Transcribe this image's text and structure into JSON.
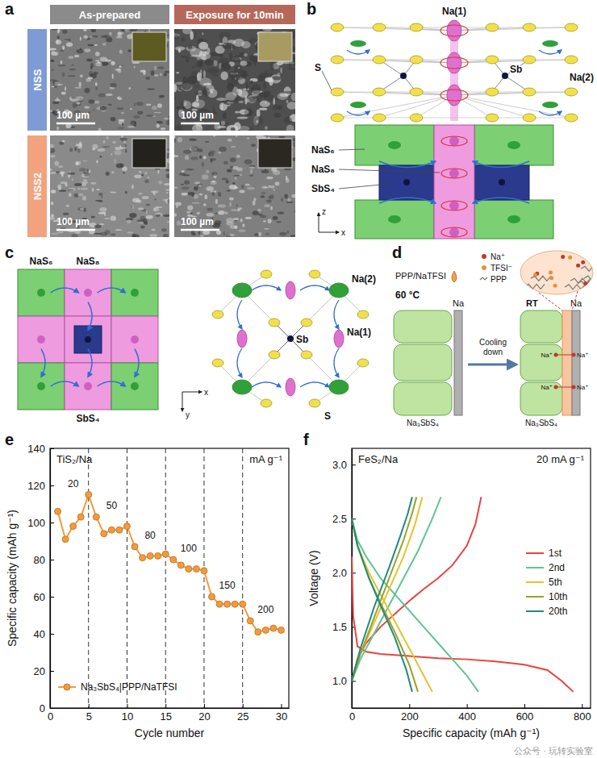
{
  "panel_labels": [
    "a",
    "b",
    "c",
    "d",
    "e",
    "f"
  ],
  "panel_a": {
    "columns": [
      "As-prepared",
      "Exposure for 10min"
    ],
    "rows": [
      "NSS",
      "NSS2"
    ],
    "scale_bars": [
      "100 µm",
      "100 µm",
      "100 µm",
      "100 µm"
    ]
  },
  "panel_b": {
    "atom_labels": [
      "Na(1)",
      "S",
      "Sb",
      "Na(2)"
    ],
    "polyhedra": [
      "NaS₆",
      "NaS₈",
      "SbS₄"
    ],
    "axes": [
      "z",
      "x"
    ]
  },
  "panel_c": {
    "polyhedra": [
      "NaS₆",
      "NaS₈",
      "SbS₄"
    ],
    "atom_labels": [
      "Na(2)",
      "Sb",
      "Na(1)",
      "S"
    ],
    "axes": [
      "x",
      "y"
    ]
  },
  "panel_d": {
    "electrolyte": "PPP/NaTFSI",
    "temperatures": [
      "60 °C",
      "RT"
    ],
    "process": "Cooling down",
    "anode_labels": [
      "Na",
      "Na"
    ],
    "solid_labels": [
      "Na₃SbS₄",
      "Na₃SbS₄"
    ],
    "interface_ions": [
      "Na⁺",
      "Na⁺",
      "Na⁺",
      "Na⁺"
    ],
    "species": [
      "Na⁺",
      "TFSI⁻",
      "PPP"
    ]
  },
  "chart_data": [
    {
      "type": "line",
      "x_label": "Cycle number",
      "y_label": "Specific capacity (mAh g⁻¹)",
      "annotations": [
        "TiS₂/Na",
        "mA g⁻¹"
      ],
      "rate_labels": [
        "20",
        "50",
        "80",
        "100",
        "150",
        "200"
      ],
      "dividers": [
        5,
        10,
        15,
        20,
        25
      ],
      "x": [
        1,
        2,
        3,
        4,
        5,
        6,
        7,
        8,
        9,
        10,
        11,
        12,
        13,
        14,
        15,
        16,
        17,
        18,
        19,
        20,
        21,
        22,
        23,
        24,
        25,
        26,
        27,
        28,
        29,
        30
      ],
      "xlim": [
        0,
        31
      ],
      "xticks": [
        0,
        5,
        10,
        15,
        20,
        25,
        30
      ],
      "ylim": [
        0,
        140
      ],
      "yticks": [
        0,
        20,
        40,
        60,
        80,
        100,
        120,
        140
      ],
      "grid": false,
      "legend": "lower left",
      "series": [
        {
          "name": "Na₃SbS₄|PPP/NaTFSI",
          "color": "#f39a3c",
          "marker": "circle",
          "line_style": "solid",
          "values": [
            106,
            91,
            98,
            103,
            115,
            103,
            94,
            96,
            96,
            98,
            87,
            81,
            82,
            82,
            83,
            80,
            77,
            75,
            75,
            74,
            60,
            56,
            56,
            56,
            56,
            47,
            41,
            42,
            43,
            42
          ]
        }
      ]
    },
    {
      "type": "line",
      "x_label": "Specific capacity (mAh g⁻¹)",
      "y_label": "Voltage (V)",
      "annotations": [
        "FeS₂/Na",
        "20 mA g⁻¹"
      ],
      "xlim": [
        0,
        830
      ],
      "xticks": [
        0,
        200,
        400,
        600,
        800
      ],
      "ylim": [
        0.75,
        3.15
      ],
      "yticks": [
        {
          "value": 1,
          "label": "1.0"
        },
        {
          "value": 1.5,
          "label": "1.5"
        },
        {
          "value": 2,
          "label": "2.0"
        },
        {
          "value": 2.5,
          "label": "2.5"
        },
        {
          "value": 3,
          "label": "3.0"
        }
      ],
      "grid": false,
      "legend": "right",
      "series": [
        {
          "name": "1st",
          "color": "#e8433f",
          "x": [
            0,
            5,
            20,
            50,
            100,
            200,
            300,
            400,
            500,
            600,
            680,
            730,
            770,
            null,
            0,
            20,
            50,
            100,
            150,
            200,
            250,
            300,
            350,
            400,
            430,
            450
          ],
          "values": [
            2.15,
            1.6,
            1.32,
            1.27,
            1.25,
            1.23,
            1.21,
            1.2,
            1.18,
            1.15,
            1.1,
            1.0,
            0.9,
            null,
            1.0,
            1.2,
            1.35,
            1.5,
            1.62,
            1.74,
            1.85,
            1.95,
            2.07,
            2.25,
            2.45,
            2.7
          ]
        },
        {
          "name": "2nd",
          "color": "#5fc495",
          "x": [
            0,
            20,
            50,
            100,
            150,
            200,
            250,
            300,
            350,
            400,
            440,
            null,
            0,
            30,
            80,
            130,
            180,
            230,
            280,
            310
          ],
          "values": [
            2.5,
            2.3,
            2.15,
            1.95,
            1.8,
            1.65,
            1.5,
            1.35,
            1.2,
            1.05,
            0.9,
            null,
            1.0,
            1.2,
            1.45,
            1.7,
            1.95,
            2.2,
            2.5,
            2.7
          ]
        },
        {
          "name": "5th",
          "color": "#e6c22e",
          "x": [
            0,
            20,
            60,
            100,
            150,
            200,
            250,
            280,
            null,
            0,
            30,
            80,
            130,
            180,
            220,
            245
          ],
          "values": [
            2.5,
            2.25,
            2.0,
            1.8,
            1.55,
            1.3,
            1.05,
            0.9,
            null,
            1.0,
            1.25,
            1.55,
            1.85,
            2.15,
            2.45,
            2.7
          ]
        },
        {
          "name": "10th",
          "color": "#9e9f2a",
          "x": [
            0,
            20,
            60,
            100,
            150,
            200,
            230,
            null,
            0,
            30,
            80,
            130,
            180,
            210,
            225
          ],
          "values": [
            2.5,
            2.25,
            1.95,
            1.72,
            1.45,
            1.15,
            0.9,
            null,
            1.0,
            1.25,
            1.6,
            1.95,
            2.3,
            2.55,
            2.7
          ]
        },
        {
          "name": "20th",
          "color": "#1e8c7e",
          "x": [
            0,
            20,
            60,
            100,
            150,
            190,
            210,
            null,
            0,
            30,
            80,
            130,
            170,
            195,
            210
          ],
          "values": [
            2.5,
            2.25,
            1.95,
            1.7,
            1.4,
            1.1,
            0.9,
            null,
            1.0,
            1.3,
            1.7,
            2.05,
            2.35,
            2.55,
            2.7
          ]
        }
      ]
    }
  ],
  "watermark": "公众号 · 玩转实验室"
}
